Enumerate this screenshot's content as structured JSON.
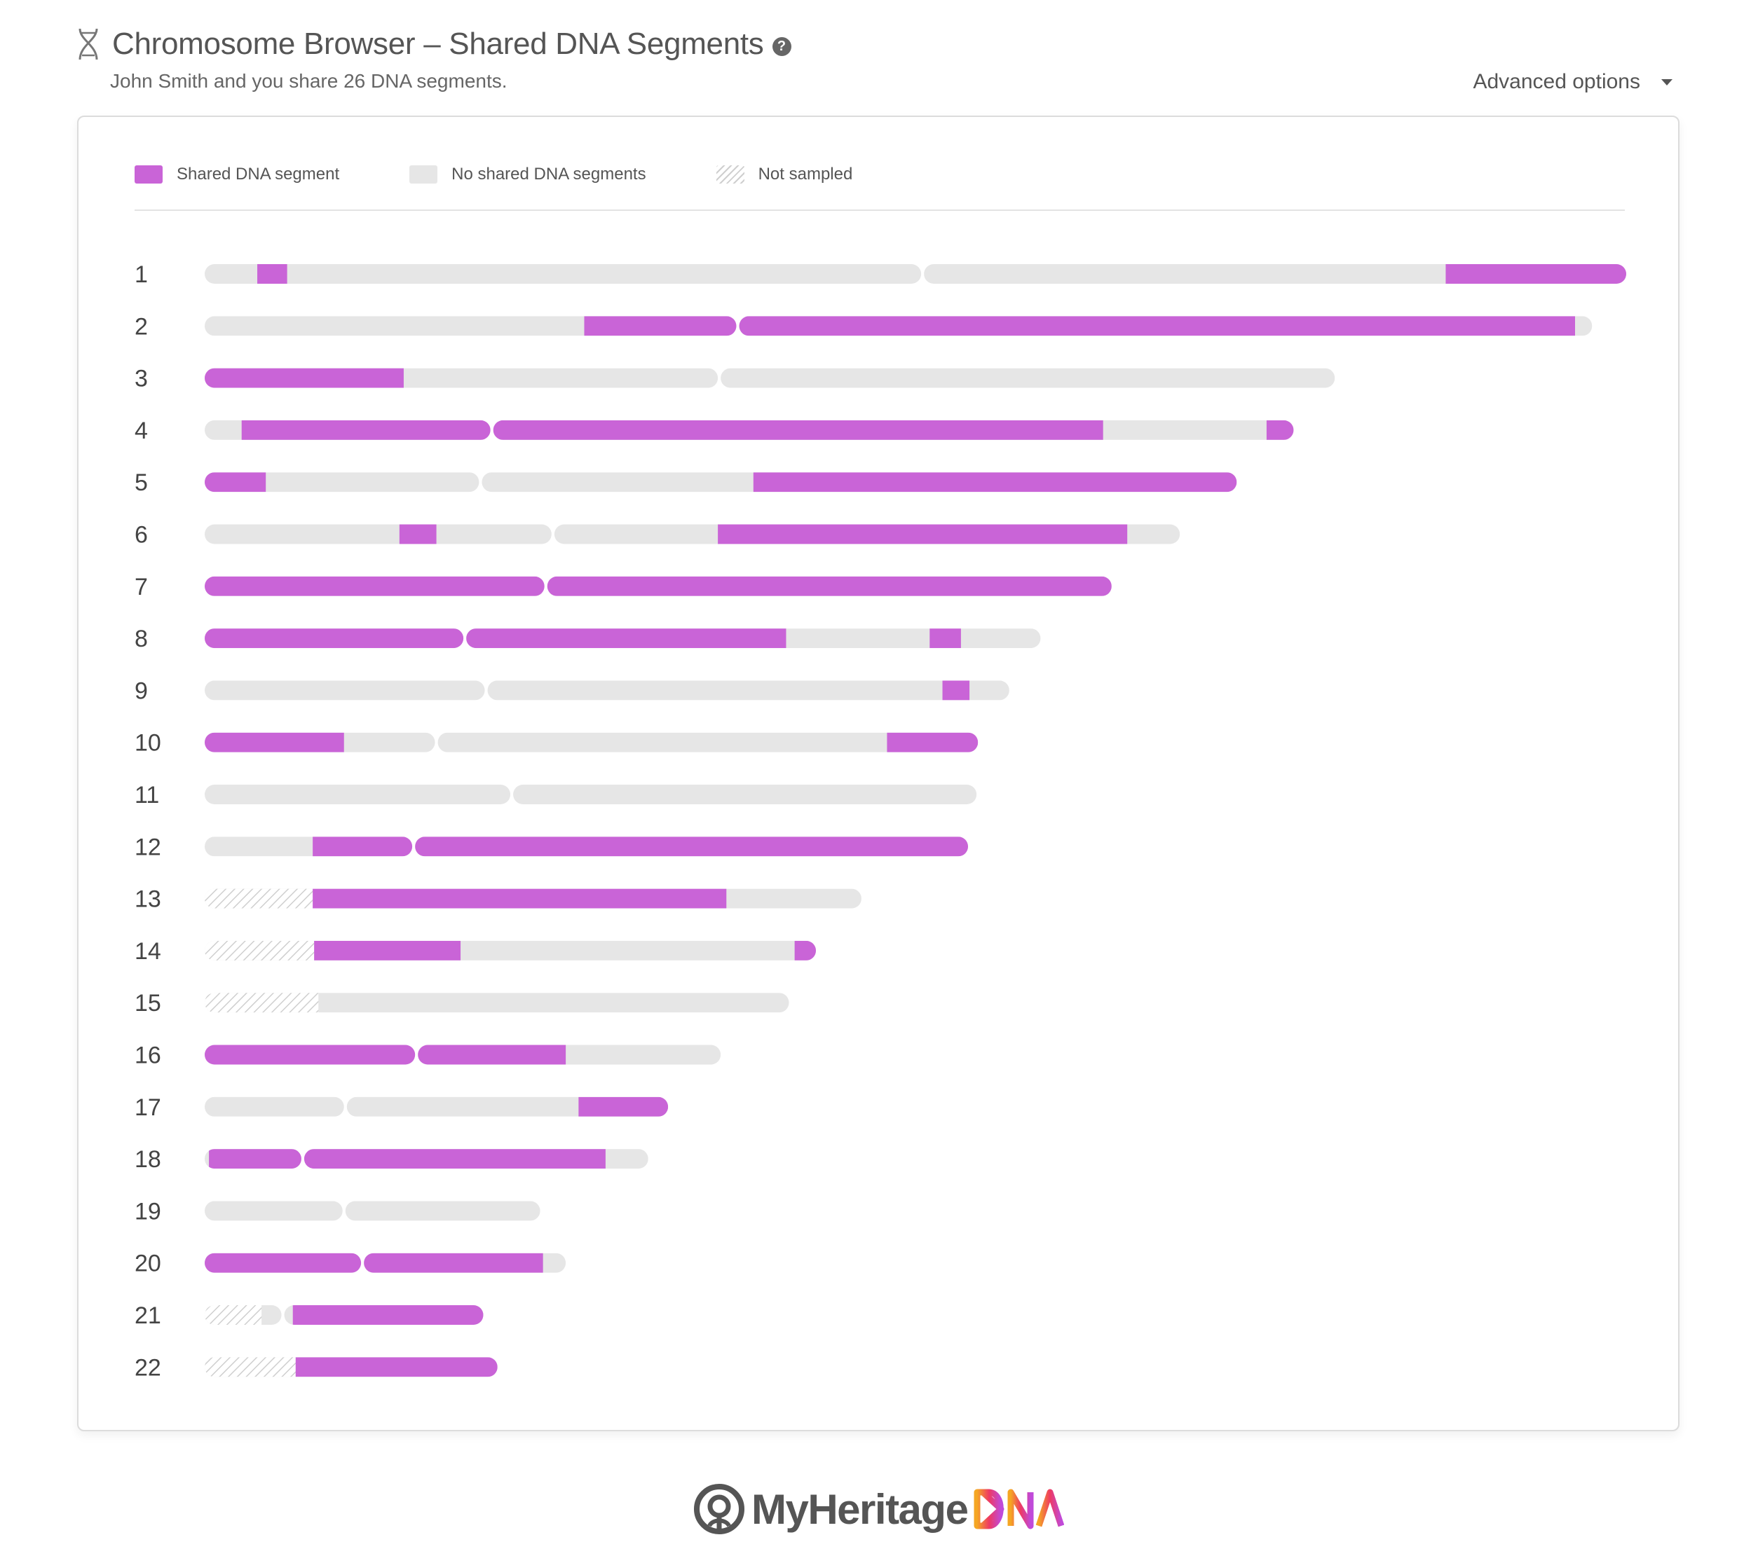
{
  "header": {
    "title": "Chromosome Browser – Shared DNA Segments",
    "help_label": "?",
    "subtitle": "John Smith and you share 26 DNA segments."
  },
  "advanced_options": {
    "label": "Advanced options"
  },
  "legend": {
    "shared": "Shared DNA segment",
    "none": "No shared DNA segments",
    "not_sampled": "Not sampled"
  },
  "colors": {
    "shared": "#c964d7",
    "none": "#e6e6e6",
    "not_sampled_hatch": "#cfcfcf",
    "text": "#555555"
  },
  "footer": {
    "brand": "MyHeritage",
    "brand_suffix": "DNA"
  },
  "chart_data": {
    "type": "bar",
    "title": "",
    "xlabel": "",
    "ylabel": "",
    "categories": [
      "1",
      "2",
      "3",
      "4",
      "5",
      "6",
      "7",
      "8",
      "9",
      "10",
      "11",
      "12",
      "13",
      "14",
      "15",
      "16",
      "17",
      "18",
      "19",
      "20",
      "21",
      "22"
    ],
    "xlim": [
      0,
      100
    ],
    "chromosomes": [
      {
        "label": "1",
        "length": 100,
        "breaks": [
          50.5
        ],
        "not_sampled": [],
        "shared": [
          [
            3.7,
            5.8
          ],
          [
            87.3,
            100
          ]
        ]
      },
      {
        "label": "2",
        "length": 97.6,
        "breaks": [
          37.5
        ],
        "not_sampled": [],
        "shared": [
          [
            26.7,
            37.5
          ],
          [
            37.5,
            96.4
          ]
        ]
      },
      {
        "label": "3",
        "length": 79.5,
        "breaks": [
          36.2
        ],
        "not_sampled": [],
        "shared": [
          [
            0,
            14.0
          ]
        ]
      },
      {
        "label": "4",
        "length": 76.6,
        "breaks": [
          20.2
        ],
        "not_sampled": [],
        "shared": [
          [
            2.6,
            20.2
          ],
          [
            20.2,
            63.2
          ],
          [
            74.7,
            76.6
          ]
        ]
      },
      {
        "label": "5",
        "length": 72.6,
        "breaks": [
          19.4
        ],
        "not_sampled": [],
        "shared": [
          [
            0,
            4.3
          ],
          [
            38.6,
            72.6
          ]
        ]
      },
      {
        "label": "6",
        "length": 68.6,
        "breaks": [
          24.5
        ],
        "not_sampled": [],
        "shared": [
          [
            13.7,
            16.3
          ],
          [
            36.1,
            64.9
          ]
        ]
      },
      {
        "label": "7",
        "length": 63.8,
        "breaks": [
          24.0
        ],
        "not_sampled": [],
        "shared": [
          [
            0,
            24.0
          ],
          [
            24.0,
            63.8
          ]
        ]
      },
      {
        "label": "8",
        "length": 58.8,
        "breaks": [
          18.3
        ],
        "not_sampled": [],
        "shared": [
          [
            0,
            18.3
          ],
          [
            18.3,
            40.9
          ],
          [
            51.0,
            53.2
          ]
        ]
      },
      {
        "label": "9",
        "length": 56.6,
        "breaks": [
          19.8
        ],
        "not_sampled": [],
        "shared": [
          [
            51.9,
            53.8
          ]
        ]
      },
      {
        "label": "10",
        "length": 54.4,
        "breaks": [
          16.3
        ],
        "not_sampled": [],
        "shared": [
          [
            0,
            9.8
          ],
          [
            48.0,
            54.4
          ]
        ]
      },
      {
        "label": "11",
        "length": 54.3,
        "breaks": [
          21.6
        ],
        "not_sampled": [],
        "shared": []
      },
      {
        "label": "12",
        "length": 53.7,
        "breaks": [
          14.7
        ],
        "not_sampled": [],
        "shared": [
          [
            7.6,
            14.7
          ],
          [
            14.7,
            53.7
          ]
        ]
      },
      {
        "label": "13",
        "length": 46.2,
        "breaks": [],
        "not_sampled": [
          [
            0,
            7.6
          ]
        ],
        "shared": [
          [
            7.6,
            36.7
          ]
        ]
      },
      {
        "label": "14",
        "length": 43.0,
        "breaks": [],
        "not_sampled": [
          [
            0,
            7.7
          ]
        ],
        "shared": [
          [
            7.7,
            18.0
          ],
          [
            41.5,
            43.0
          ]
        ]
      },
      {
        "label": "15",
        "length": 41.1,
        "breaks": [],
        "not_sampled": [
          [
            0,
            8.0
          ]
        ],
        "shared": []
      },
      {
        "label": "16",
        "length": 36.3,
        "breaks": [
          14.9
        ],
        "not_sampled": [],
        "shared": [
          [
            0,
            14.9
          ],
          [
            14.9,
            25.4
          ]
        ]
      },
      {
        "label": "17",
        "length": 32.6,
        "breaks": [
          9.9
        ],
        "not_sampled": [],
        "shared": [
          [
            26.3,
            32.6
          ]
        ]
      },
      {
        "label": "18",
        "length": 31.2,
        "breaks": [
          6.9
        ],
        "not_sampled": [],
        "shared": [
          [
            0.3,
            6.9
          ],
          [
            6.9,
            28.2
          ]
        ]
      },
      {
        "label": "19",
        "length": 23.6,
        "breaks": [
          9.8
        ],
        "not_sampled": [],
        "shared": []
      },
      {
        "label": "20",
        "length": 25.4,
        "breaks": [
          11.1
        ],
        "not_sampled": [],
        "shared": [
          [
            0,
            11.1
          ],
          [
            11.1,
            23.8
          ]
        ]
      },
      {
        "label": "21",
        "length": 19.6,
        "breaks": [
          5.5
        ],
        "not_sampled": [
          [
            0,
            4.0
          ]
        ],
        "shared": [
          [
            6.2,
            19.6
          ]
        ]
      },
      {
        "label": "22",
        "length": 20.6,
        "breaks": [],
        "not_sampled": [
          [
            0,
            6.4
          ]
        ],
        "shared": [
          [
            6.4,
            20.6
          ]
        ]
      }
    ]
  }
}
